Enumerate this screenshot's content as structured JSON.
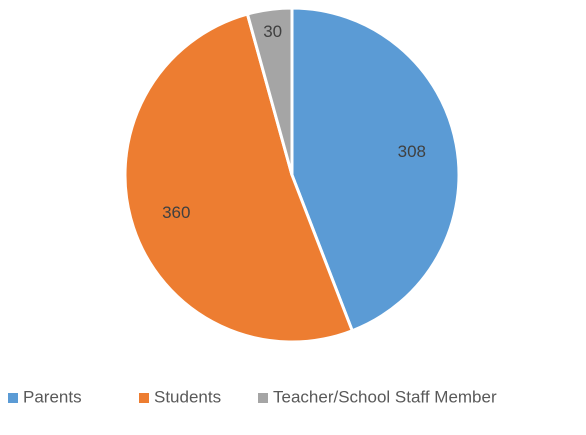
{
  "chart_data": {
    "type": "pie",
    "categories": [
      "Parents",
      "Students",
      "Teacher/School Staff Member"
    ],
    "values": [
      308,
      360,
      30
    ],
    "colors": [
      "#5b9bd5",
      "#ed7d31",
      "#a5a5a5"
    ],
    "legend": "bottom"
  }
}
